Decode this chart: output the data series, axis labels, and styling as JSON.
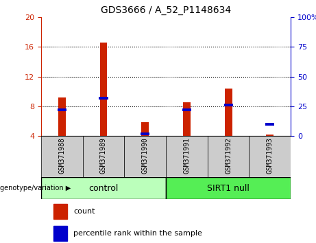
{
  "title": "GDS3666 / A_52_P1148634",
  "samples": [
    "GSM371988",
    "GSM371989",
    "GSM371990",
    "GSM371991",
    "GSM371992",
    "GSM371993"
  ],
  "count_values": [
    9.2,
    16.6,
    5.9,
    8.5,
    10.4,
    4.2
  ],
  "percentile_values": [
    22,
    32,
    2,
    22,
    26,
    10
  ],
  "ylim_left": [
    4,
    20
  ],
  "ylim_right": [
    0,
    100
  ],
  "yticks_left": [
    4,
    8,
    12,
    16,
    20
  ],
  "yticks_right": [
    0,
    25,
    50,
    75,
    100
  ],
  "grid_lines": [
    8,
    12,
    16
  ],
  "bar_color": "#CC2200",
  "percentile_color": "#0000CC",
  "bar_width": 0.18,
  "control_label": "control",
  "sirt1_label": "SIRT1 null",
  "group_label": "genotype/variation",
  "legend_count": "count",
  "legend_percentile": "percentile rank within the sample",
  "control_color": "#BBFFBB",
  "sirt1_color": "#55EE55",
  "tick_bg_color": "#CCCCCC",
  "left_ax_color": "#CC2200",
  "right_ax_color": "#0000CC",
  "n_control": 3,
  "n_sirt1": 3
}
